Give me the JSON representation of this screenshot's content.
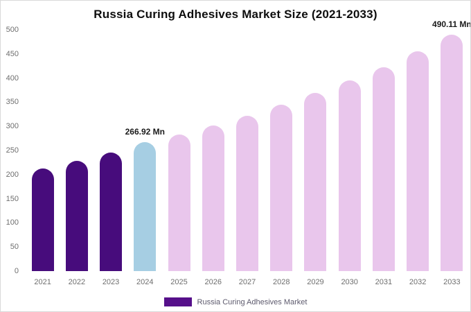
{
  "chart_data": {
    "type": "bar",
    "title": "Russia Curing Adhesives Market Size (2021-2033)",
    "categories": [
      "2021",
      "2022",
      "2023",
      "2024",
      "2025",
      "2026",
      "2027",
      "2028",
      "2029",
      "2030",
      "2031",
      "2032",
      "2033"
    ],
    "values": [
      213,
      229,
      246,
      266.92,
      283,
      302,
      322,
      345,
      369,
      395,
      423,
      455,
      490.11
    ],
    "bar_colors": [
      "#470c7c",
      "#470c7c",
      "#470c7c",
      "#a6cee3",
      "#e9c6ec",
      "#e9c6ec",
      "#e9c6ec",
      "#e9c6ec",
      "#e9c6ec",
      "#e9c6ec",
      "#e9c6ec",
      "#e9c6ec",
      "#e9c6ec"
    ],
    "xlabel": "",
    "ylabel": "",
    "ylim": [
      0,
      500
    ],
    "yticks": [
      0,
      50,
      100,
      150,
      200,
      250,
      300,
      350,
      400,
      450,
      500
    ],
    "grid": false,
    "annotations": [
      {
        "category": "2024",
        "text": "266.92 Mn"
      },
      {
        "category": "2033",
        "text": "490.11 Mn"
      }
    ],
    "legend": {
      "label": "Russia Curing Adhesives Market",
      "swatch_color": "#56108a",
      "position": "bottom-center"
    }
  }
}
